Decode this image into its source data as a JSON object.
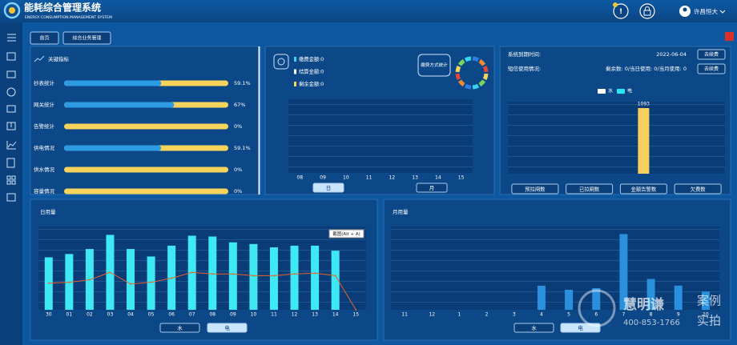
{
  "header": {
    "title": "能耗综合管理系统",
    "subtitle": "ENERGY CONSUMPTION MANAGEMENT SYSTEM",
    "user": "许昌恒大"
  },
  "tabs": [
    "首页",
    "综合业务管理"
  ],
  "system": {
    "expire_label": "系统到期时间:",
    "expire_date": "2022-06-04",
    "renew": "去续费",
    "sms_label": "短信使用情况:",
    "sms_detail": "剩余数: 0/当日使用: 0/当月使用: 0",
    "sms_renew": "去续费"
  },
  "tooltip": "截图(Alt + A)",
  "watermark": {
    "brand": "慧明谦",
    "phone": "400-853-1766",
    "tag1": "案例",
    "tag2": "实拍"
  },
  "chart_data": [
    {
      "type": "progress",
      "title": "关键指标",
      "categories": [
        "抄表统计",
        "网关统计",
        "告警统计",
        "供电情况",
        "供水情况",
        "容量情况"
      ],
      "values": [
        59.1,
        67,
        0,
        59.1,
        0,
        0
      ],
      "value_labels": [
        "59.1%",
        "67%",
        "0%",
        "59.1%",
        "0%",
        "0%"
      ],
      "xlim": [
        0,
        100
      ],
      "color": "#2d9ce2",
      "track_color": "#f6d45c"
    },
    {
      "type": "bar",
      "legend": [
        {
          "label": "缴费金额:0",
          "color": "#38d3ef"
        },
        {
          "label": "结算金额:0",
          "color": "#ffffff"
        },
        {
          "label": "剩余金额:0",
          "color": "#f6d45c"
        }
      ],
      "side_label": "缴费方式统计",
      "categories": [
        "08",
        "09",
        "10",
        "11",
        "12",
        "13",
        "14",
        "15"
      ],
      "buttons": [
        "日",
        "月"
      ],
      "active": 0
    },
    {
      "type": "bar",
      "categories": [
        "预拉闸数",
        "已拉闸数",
        "金额告警数",
        "欠费数"
      ],
      "series": [
        {
          "name": "水",
          "color": "#ffffff",
          "values": [
            0,
            0,
            0,
            0
          ]
        },
        {
          "name": "电",
          "color": "#2ee6f0",
          "bar_color": "#f7cf5e",
          "values": [
            0,
            0,
            1093,
            0
          ]
        }
      ],
      "ylim": [
        0,
        1200
      ],
      "show_values": true
    },
    {
      "type": "bar",
      "title": "日用量",
      "categories": [
        "30",
        "01",
        "02",
        "03",
        "04",
        "05",
        "06",
        "07",
        "08",
        "09",
        "10",
        "11",
        "12",
        "13",
        "14",
        "15"
      ],
      "series": [
        {
          "type": "bar",
          "color": "#3ee8f4",
          "values": [
            63,
            67,
            73,
            90,
            73,
            64,
            77,
            89,
            88,
            81,
            79,
            75,
            77,
            77,
            71,
            0
          ]
        },
        {
          "type": "line",
          "color": "#e8632a",
          "values": [
            32,
            33,
            36,
            45,
            31,
            33,
            38,
            45,
            43,
            43,
            41,
            41,
            43,
            44,
            41,
            0
          ]
        }
      ],
      "ylim": [
        0,
        100
      ],
      "buttons": [
        "水",
        "电"
      ],
      "active": 1
    },
    {
      "type": "bar",
      "title": "月用量",
      "categories": [
        "11",
        "12",
        "1",
        "2",
        "3",
        "4",
        "5",
        "6",
        "7",
        "8",
        "9",
        "10"
      ],
      "values": [
        0,
        0,
        0,
        0,
        0,
        29,
        24,
        26,
        91,
        37,
        29,
        22
      ],
      "color": "#2a8fdc",
      "ylim": [
        0,
        100
      ],
      "buttons": [
        "水",
        "电"
      ],
      "active": 1
    }
  ]
}
